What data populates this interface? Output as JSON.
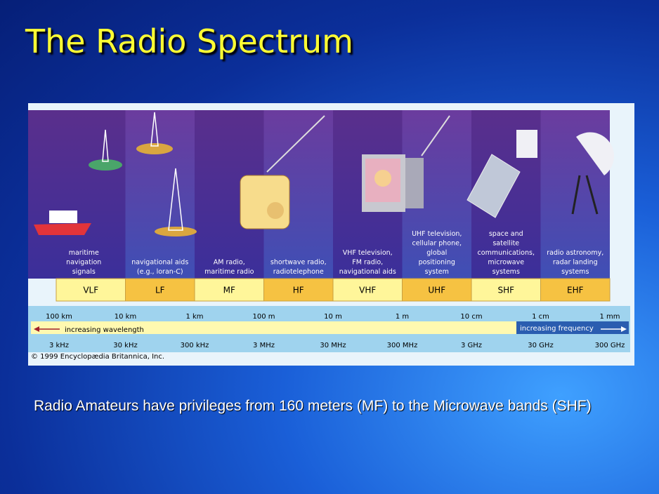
{
  "title": "The Radio Spectrum",
  "diagram": {
    "bands": [
      {
        "name": "VLF",
        "uses": [
          "maritime",
          "navigation",
          "signals"
        ]
      },
      {
        "name": "LF",
        "uses": [
          "navigational aids",
          "(e.g., loran-C)"
        ]
      },
      {
        "name": "MF",
        "uses": [
          "AM radio,",
          "maritime radio"
        ]
      },
      {
        "name": "HF",
        "uses": [
          "shortwave radio,",
          "radiotelephone"
        ]
      },
      {
        "name": "VHF",
        "uses": [
          "VHF television,",
          "FM radio,",
          "navigational aids"
        ]
      },
      {
        "name": "UHF",
        "uses": [
          "UHF television,",
          "cellular phone,",
          "global",
          "positioning",
          "system"
        ]
      },
      {
        "name": "SHF",
        "uses": [
          "space and",
          "satellite",
          "communications,",
          "microwave",
          "systems"
        ]
      },
      {
        "name": "EHF",
        "uses": [
          "radio astronomy,",
          "radar landing",
          "systems"
        ]
      }
    ],
    "wavelengths": [
      "100 km",
      "10 km",
      "1 km",
      "100 m",
      "10 m",
      "1 m",
      "10 cm",
      "1 cm",
      "1 mm"
    ],
    "frequencies": [
      "3 kHz",
      "30 kHz",
      "300 kHz",
      "3 MHz",
      "30 MHz",
      "300 MHz",
      "3 GHz",
      "30 GHz",
      "300 GHz"
    ],
    "wavelength_arrow": "increasing wavelength",
    "frequency_arrow": "increasing frequency",
    "copyright": "© 1999 Encyclopædia Britannica, Inc."
  },
  "body": "Radio Amateurs have privileges from 160 meters (MF) to the Microwave bands (SHF)"
}
